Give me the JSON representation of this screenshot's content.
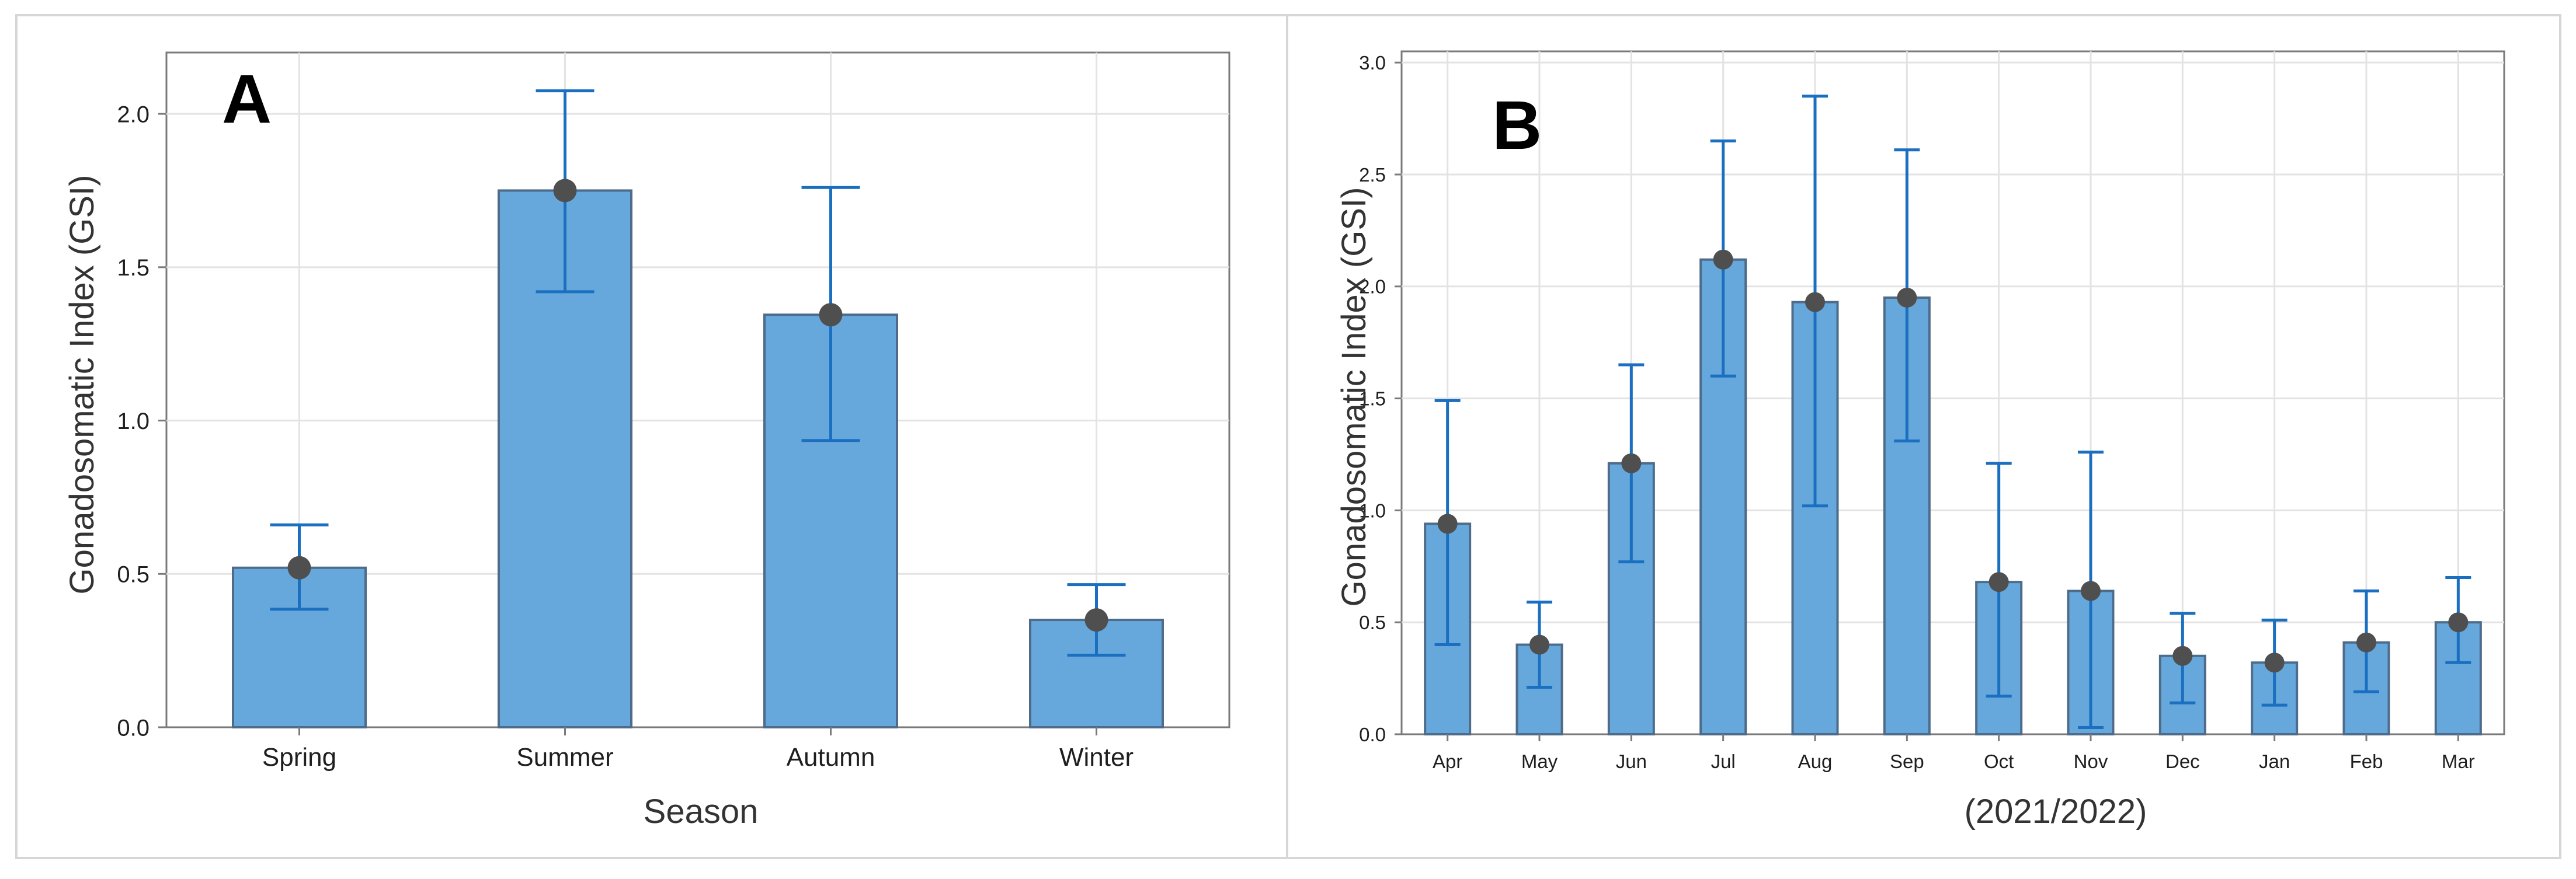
{
  "chart_data": [
    {
      "panel_label": "A",
      "type": "bar",
      "categories": [
        "Spring",
        "Summer",
        "Autumn",
        "Winter"
      ],
      "values": [
        0.52,
        1.75,
        1.345,
        0.35
      ],
      "error_low": [
        0.385,
        1.42,
        0.935,
        0.235
      ],
      "error_high": [
        0.66,
        2.075,
        1.76,
        0.465
      ],
      "xlabel": "Season",
      "ylabel": "Gonadosomatic Index (GSI)",
      "ylim": [
        0,
        2.2
      ],
      "yticks": [
        "0.0",
        "0.5",
        "1.0",
        "1.5",
        "2.0"
      ],
      "grid": true
    },
    {
      "panel_label": "B",
      "type": "bar",
      "categories": [
        "Apr",
        "May",
        "Jun",
        "Jul",
        "Aug",
        "Sep",
        "Oct",
        "Nov",
        "Dec",
        "Jan",
        "Feb",
        "Mar"
      ],
      "values": [
        0.94,
        0.4,
        1.21,
        2.12,
        1.93,
        1.95,
        0.68,
        0.64,
        0.35,
        0.32,
        0.41,
        0.5
      ],
      "error_low": [
        0.4,
        0.21,
        0.77,
        1.6,
        1.02,
        1.31,
        0.17,
        0.03,
        0.14,
        0.13,
        0.19,
        0.32
      ],
      "error_high": [
        1.49,
        0.59,
        1.65,
        2.65,
        2.85,
        2.61,
        1.21,
        1.26,
        0.54,
        0.51,
        0.64,
        0.7
      ],
      "xlabel": "(2021/2022)",
      "ylabel": "Gonadosomatic Index (GSI)",
      "ylim": [
        0,
        3.05
      ],
      "yticks": [
        "0.0",
        "0.5",
        "1.0",
        "1.5",
        "2.0",
        "2.5",
        "3.0"
      ],
      "grid": true
    }
  ],
  "colors": {
    "bar_fill": "#66a8dc",
    "bar_stroke": "#4e6c8a",
    "error_bar": "#1a6fc0",
    "mean_point": "#4f4f4f",
    "grid": "#e3e3e3",
    "axis": "#7a7a7a",
    "panel_border": "#d6d6d6",
    "text": "#1e1e1e"
  }
}
